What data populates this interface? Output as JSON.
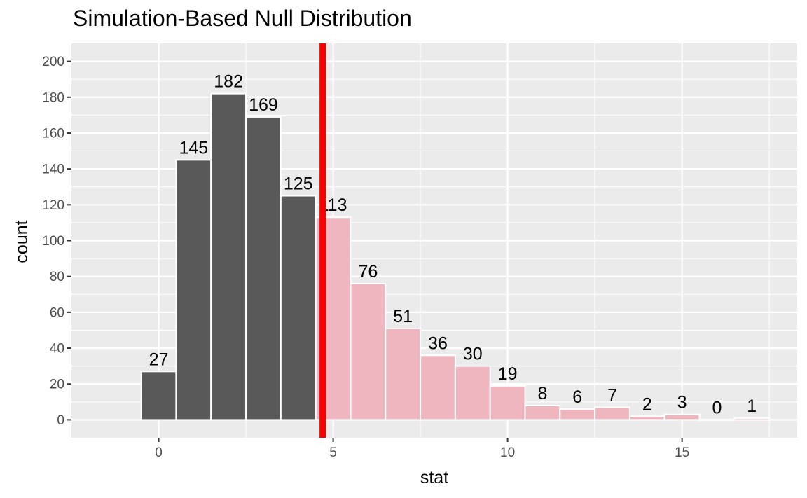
{
  "chart_data": {
    "type": "bar",
    "title": "Simulation-Based Null Distribution",
    "xlabel": "stat",
    "ylabel": "count",
    "x": [
      0,
      1,
      2,
      3,
      4,
      5,
      6,
      7,
      8,
      9,
      10,
      11,
      12,
      13,
      14,
      15,
      16,
      17
    ],
    "values": [
      27,
      145,
      182,
      169,
      125,
      113,
      76,
      51,
      36,
      30,
      19,
      8,
      6,
      7,
      2,
      3,
      0,
      1
    ],
    "xlim": [
      -2.5,
      18.3
    ],
    "ylim": [
      -10,
      210
    ],
    "x_ticks": [
      0,
      5,
      10,
      15
    ],
    "y_ticks": [
      0,
      20,
      40,
      60,
      80,
      100,
      120,
      140,
      160,
      180,
      200
    ],
    "observed_stat": 4.7,
    "observed_line_color": "#ff0000",
    "shade_direction": "right",
    "colors": {
      "bar_default": "#595959",
      "bar_shaded": "#efb6c0",
      "bar_outline": "#ffffff",
      "panel_background": "#ebebeb",
      "grid": "#ffffff",
      "tick_text": "#4d4d4d"
    },
    "grid": true
  }
}
